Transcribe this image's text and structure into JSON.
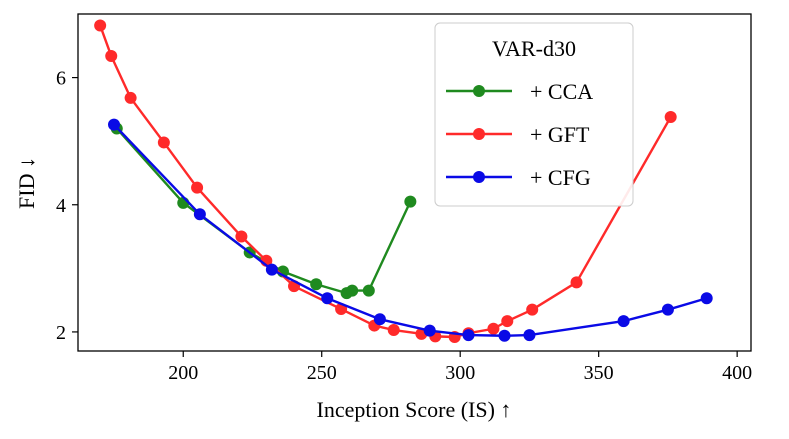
{
  "chart_data": {
    "type": "line",
    "xlabel": "Inception Score (IS) ↑",
    "ylabel": "FID ↓",
    "xlim": [
      162,
      405
    ],
    "ylim": [
      1.7,
      7.0
    ],
    "xticks": [
      200,
      250,
      300,
      350,
      400
    ],
    "yticks": [
      2,
      4,
      6
    ],
    "grid": false,
    "legend": {
      "title": "VAR-d30",
      "placement": "upper-right-of-center"
    },
    "series": [
      {
        "name": "+ CCA",
        "color": "#1f8a1f",
        "x": [
          176,
          200,
          224,
          236,
          248,
          259,
          261,
          267,
          282
        ],
        "y": [
          5.2,
          4.03,
          3.25,
          2.95,
          2.75,
          2.61,
          2.65,
          2.65,
          4.05
        ]
      },
      {
        "name": "+ GFT",
        "color": "#ff2a2a",
        "x": [
          170,
          174,
          181,
          193,
          205,
          221,
          230,
          240,
          257,
          269,
          276,
          286,
          291,
          298,
          303,
          312,
          317,
          326,
          342,
          376
        ],
        "y": [
          6.82,
          6.34,
          5.68,
          4.98,
          4.27,
          3.5,
          3.12,
          2.72,
          2.36,
          2.1,
          2.03,
          1.97,
          1.93,
          1.92,
          1.98,
          2.05,
          2.17,
          2.35,
          2.78,
          5.38
        ]
      },
      {
        "name": "+ CFG",
        "color": "#0a0ae6",
        "x": [
          175,
          206,
          232,
          252,
          271,
          289,
          303,
          316,
          325,
          359,
          375,
          389
        ],
        "y": [
          5.26,
          3.85,
          2.98,
          2.53,
          2.2,
          2.02,
          1.95,
          1.94,
          1.95,
          2.17,
          2.35,
          2.53
        ]
      }
    ]
  }
}
